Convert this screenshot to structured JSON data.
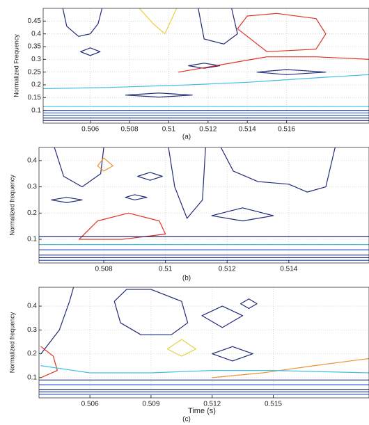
{
  "chart_data": [
    {
      "type": "contour",
      "ylabel": "Normalized Frequency",
      "caption": "(a)",
      "xlim": [
        0.5036,
        0.5202
      ],
      "ylim": [
        0.05,
        0.5
      ],
      "xticks": [
        0.506,
        0.508,
        0.51,
        0.512,
        0.514,
        0.516
      ],
      "yticks": [
        0.1,
        0.15,
        0.2,
        0.25,
        0.3,
        0.35,
        0.4,
        0.45
      ],
      "grid": true,
      "contours": [
        {
          "color": "#1f2a78",
          "x": [
            0.5046,
            0.5048,
            0.5054,
            0.506,
            0.5064,
            0.5066
          ],
          "y": [
            0.5,
            0.43,
            0.39,
            0.4,
            0.44,
            0.5
          ]
        },
        {
          "color": "#1f2a78",
          "x": [
            0.5055,
            0.506,
            0.5065,
            0.506,
            0.5055
          ],
          "y": [
            0.33,
            0.345,
            0.33,
            0.315,
            0.33
          ]
        },
        {
          "color": "#1f2a78",
          "x": [
            0.5078,
            0.5095,
            0.5112,
            0.5095,
            0.5078
          ],
          "y": [
            0.16,
            0.168,
            0.16,
            0.152,
            0.16
          ]
        },
        {
          "color": "#1f2a78",
          "x": [
            0.511,
            0.5118,
            0.5126,
            0.5118,
            0.511
          ],
          "y": [
            0.275,
            0.285,
            0.275,
            0.265,
            0.275
          ]
        },
        {
          "color": "#1f2a78",
          "x": [
            0.5115,
            0.5118,
            0.5128,
            0.5135,
            0.5132
          ],
          "y": [
            0.5,
            0.38,
            0.36,
            0.4,
            0.5
          ]
        },
        {
          "color": "#e03020",
          "x": [
            0.5135,
            0.514,
            0.5155,
            0.5175,
            0.518,
            0.5175,
            0.515,
            0.5135
          ],
          "y": [
            0.42,
            0.47,
            0.48,
            0.46,
            0.4,
            0.34,
            0.33,
            0.42
          ]
        },
        {
          "color": "#e03020",
          "x": [
            0.5105,
            0.512,
            0.5135,
            0.515,
            0.5175,
            0.5202
          ],
          "y": [
            0.25,
            0.27,
            0.29,
            0.31,
            0.31,
            0.3
          ]
        },
        {
          "color": "#e8d040",
          "x": [
            0.5085,
            0.5092,
            0.5098,
            0.5104
          ],
          "y": [
            0.5,
            0.44,
            0.4,
            0.5
          ]
        },
        {
          "color": "#40c0e0",
          "x": [
            0.5036,
            0.507,
            0.511,
            0.514,
            0.518,
            0.5202
          ],
          "y": [
            0.185,
            0.19,
            0.2,
            0.21,
            0.23,
            0.24
          ]
        },
        {
          "color": "#1f2a78",
          "x": [
            0.5145,
            0.516,
            0.518,
            0.516,
            0.5145
          ],
          "y": [
            0.25,
            0.26,
            0.25,
            0.24,
            0.25
          ]
        },
        {
          "color": "#40c0e0",
          "x": [
            0.5036,
            0.5202
          ],
          "y": [
            0.115,
            0.115
          ]
        },
        {
          "color": "#1f2a78",
          "x": [
            0.5036,
            0.5202
          ],
          "y": [
            0.1,
            0.1
          ]
        },
        {
          "color": "#3060d0",
          "x": [
            0.5036,
            0.5202
          ],
          "y": [
            0.09,
            0.09
          ]
        },
        {
          "color": "#3060d0",
          "x": [
            0.5036,
            0.5202
          ],
          "y": [
            0.08,
            0.08
          ]
        },
        {
          "color": "#1f2a78",
          "x": [
            0.5036,
            0.5202
          ],
          "y": [
            0.07,
            0.07
          ]
        },
        {
          "color": "#1f2a78",
          "x": [
            0.5036,
            0.5202
          ],
          "y": [
            0.06,
            0.06
          ]
        }
      ]
    },
    {
      "type": "contour",
      "ylabel": "Normalized frequency",
      "caption": "(b)",
      "xlim": [
        0.5059,
        0.5166
      ],
      "ylim": [
        0.01,
        0.45
      ],
      "xticks": [
        0.508,
        0.51,
        0.512,
        0.514
      ],
      "yticks": [
        0.1,
        0.2,
        0.3,
        0.4
      ],
      "grid": true,
      "contours": [
        {
          "color": "#1f2a78",
          "x": [
            0.5064,
            0.5067,
            0.5073,
            0.5079,
            0.508
          ],
          "y": [
            0.45,
            0.34,
            0.3,
            0.35,
            0.45
          ]
        },
        {
          "color": "#1f2a78",
          "x": [
            0.5063,
            0.5068,
            0.5073,
            0.5068,
            0.5063
          ],
          "y": [
            0.25,
            0.26,
            0.25,
            0.24,
            0.25
          ]
        },
        {
          "color": "#1f2a78",
          "x": [
            0.5091,
            0.5095,
            0.5099,
            0.5095,
            0.5091
          ],
          "y": [
            0.34,
            0.355,
            0.34,
            0.325,
            0.34
          ]
        },
        {
          "color": "#1f2a78",
          "x": [
            0.5087,
            0.509,
            0.5094,
            0.509,
            0.5087
          ],
          "y": [
            0.26,
            0.27,
            0.26,
            0.25,
            0.26
          ]
        },
        {
          "color": "#1f2a78",
          "x": [
            0.5101,
            0.5103,
            0.5107,
            0.5112,
            0.5113
          ],
          "y": [
            0.45,
            0.3,
            0.18,
            0.25,
            0.45
          ]
        },
        {
          "color": "#1f2a78",
          "x": [
            0.5118,
            0.5122,
            0.513,
            0.514,
            0.5146,
            0.5152,
            0.5155
          ],
          "y": [
            0.45,
            0.36,
            0.32,
            0.31,
            0.28,
            0.3,
            0.45
          ]
        },
        {
          "color": "#1f2a78",
          "x": [
            0.5115,
            0.5125,
            0.5135,
            0.5125,
            0.5115
          ],
          "y": [
            0.19,
            0.22,
            0.19,
            0.17,
            0.19
          ]
        },
        {
          "color": "#e03020",
          "x": [
            0.5072,
            0.5078,
            0.5088,
            0.5098,
            0.51,
            0.5086,
            0.5072
          ],
          "y": [
            0.1,
            0.17,
            0.2,
            0.17,
            0.12,
            0.1,
            0.1
          ]
        },
        {
          "color": "#f09030",
          "x": [
            0.5078,
            0.508,
            0.5083,
            0.508,
            0.5078
          ],
          "y": [
            0.38,
            0.41,
            0.38,
            0.36,
            0.38
          ]
        },
        {
          "color": "#1f2a78",
          "x": [
            0.5059,
            0.5166
          ],
          "y": [
            0.11,
            0.11
          ]
        },
        {
          "color": "#40c0e0",
          "x": [
            0.5059,
            0.5166
          ],
          "y": [
            0.08,
            0.08
          ]
        },
        {
          "color": "#3060d0",
          "x": [
            0.5059,
            0.5166
          ],
          "y": [
            0.06,
            0.06
          ]
        },
        {
          "color": "#1f2a78",
          "x": [
            0.5059,
            0.5166
          ],
          "y": [
            0.04,
            0.04
          ]
        },
        {
          "color": "#1f2a78",
          "x": [
            0.5059,
            0.5166
          ],
          "y": [
            0.03,
            0.03
          ]
        },
        {
          "color": "#3060d0",
          "x": [
            0.5059,
            0.5166
          ],
          "y": [
            0.02,
            0.02
          ]
        }
      ]
    },
    {
      "type": "contour",
      "ylabel": "Normalized frequency",
      "caption": "(c)",
      "xlabel": "Time (s)",
      "xlim": [
        0.5035,
        0.5197
      ],
      "ylim": [
        0.015,
        0.479
      ],
      "xticks": [
        0.506,
        0.509,
        0.512,
        0.515
      ],
      "yticks": [
        0.1,
        0.2,
        0.3,
        0.4
      ],
      "grid": true,
      "contours": [
        {
          "color": "#1f2a78",
          "x": [
            0.5072,
            0.5078,
            0.509,
            0.5105,
            0.5108,
            0.51,
            0.5085,
            0.5075,
            0.5072
          ],
          "y": [
            0.42,
            0.47,
            0.47,
            0.42,
            0.33,
            0.28,
            0.28,
            0.33,
            0.42
          ]
        },
        {
          "color": "#1f2a78",
          "x": [
            0.5036,
            0.5045,
            0.505,
            0.5052
          ],
          "y": [
            0.2,
            0.3,
            0.42,
            0.48
          ]
        },
        {
          "color": "#1f2a78",
          "x": [
            0.5115,
            0.5125,
            0.5135,
            0.5125,
            0.5115
          ],
          "y": [
            0.36,
            0.4,
            0.36,
            0.31,
            0.36
          ]
        },
        {
          "color": "#1f2a78",
          "x": [
            0.5134,
            0.5138,
            0.5142,
            0.5138,
            0.5134
          ],
          "y": [
            0.41,
            0.43,
            0.41,
            0.39,
            0.41
          ]
        },
        {
          "color": "#1f2a78",
          "x": [
            0.512,
            0.513,
            0.514,
            0.513,
            0.512
          ],
          "y": [
            0.2,
            0.23,
            0.2,
            0.17,
            0.2
          ]
        },
        {
          "color": "#e8d040",
          "x": [
            0.5098,
            0.5105,
            0.5112,
            0.5105,
            0.5098
          ],
          "y": [
            0.22,
            0.26,
            0.22,
            0.19,
            0.22
          ]
        },
        {
          "color": "#e03020",
          "x": [
            0.5036,
            0.5042,
            0.5044,
            0.5036
          ],
          "y": [
            0.23,
            0.19,
            0.13,
            0.1
          ]
        },
        {
          "color": "#f09030",
          "x": [
            0.512,
            0.5145,
            0.517,
            0.5197
          ],
          "y": [
            0.1,
            0.12,
            0.15,
            0.18
          ]
        },
        {
          "color": "#40c0e0",
          "x": [
            0.5036,
            0.506,
            0.509,
            0.512,
            0.515,
            0.5197
          ],
          "y": [
            0.15,
            0.12,
            0.12,
            0.13,
            0.13,
            0.12
          ]
        },
        {
          "color": "#1f2a78",
          "x": [
            0.5035,
            0.5197
          ],
          "y": [
            0.09,
            0.09
          ]
        },
        {
          "color": "#3060d0",
          "x": [
            0.5035,
            0.5197
          ],
          "y": [
            0.07,
            0.07
          ]
        },
        {
          "color": "#1f2a78",
          "x": [
            0.5035,
            0.5197
          ],
          "y": [
            0.05,
            0.05
          ]
        },
        {
          "color": "#1f2a78",
          "x": [
            0.5035,
            0.5197
          ],
          "y": [
            0.04,
            0.04
          ]
        },
        {
          "color": "#3060d0",
          "x": [
            0.5035,
            0.5197
          ],
          "y": [
            0.03,
            0.03
          ]
        }
      ]
    }
  ]
}
